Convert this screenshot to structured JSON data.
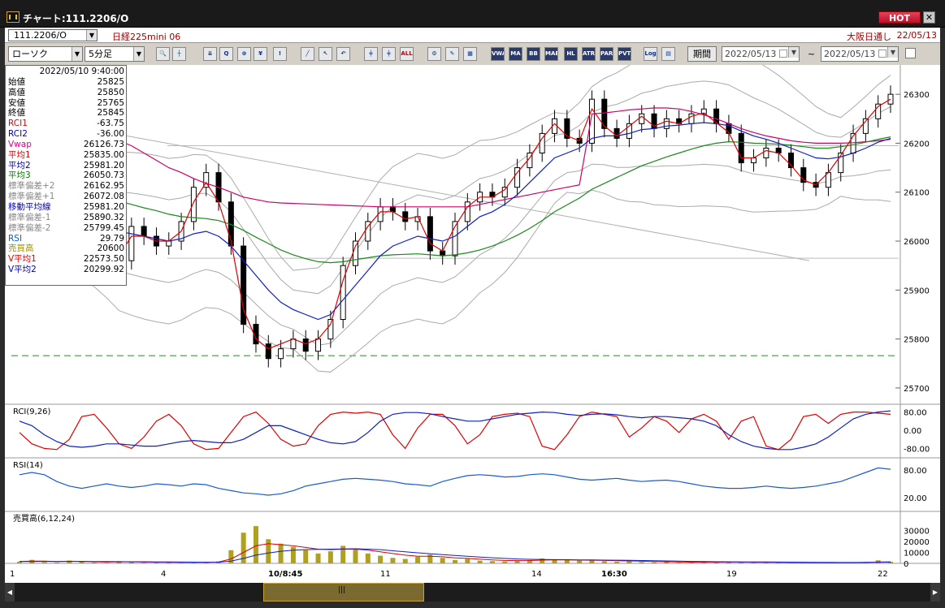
{
  "window": {
    "title": "チャート:111.2206/O",
    "hot_label": "HOT",
    "close_label": "✕"
  },
  "header": {
    "symbol_code": "111.2206/O",
    "symbol_name": "日経225mini 06",
    "session": "大阪日通し",
    "date": "22/05/13"
  },
  "toolbar": {
    "chart_type": "ローソク",
    "interval": "5分足",
    "period_label": "期間",
    "date_from": "2022/05/13",
    "date_to": "2022/05/13",
    "tilde": "~",
    "buttons": [
      {
        "name": "zoom-button",
        "glyph": "🔍"
      },
      {
        "name": "crosshair-button",
        "glyph": "┼"
      },
      {
        "name": "trend-button",
        "glyph": "⇊"
      },
      {
        "name": "magnify-button",
        "glyph": "Q"
      },
      {
        "name": "compare-button",
        "glyph": "⊕"
      },
      {
        "name": "price-button",
        "glyph": "¥"
      },
      {
        "name": "note-button",
        "glyph": "!"
      },
      {
        "name": "line-tool-button",
        "glyph": "╱"
      },
      {
        "name": "cursor-button",
        "glyph": "↖"
      },
      {
        "name": "undo-button",
        "glyph": "↶"
      },
      {
        "name": "candle-button",
        "glyph": "╪"
      },
      {
        "name": "candle2-button",
        "glyph": "╪"
      },
      {
        "name": "all-button",
        "glyph": "ALL"
      },
      {
        "name": "settings-button",
        "glyph": "⚙"
      },
      {
        "name": "color-button",
        "glyph": "✎"
      },
      {
        "name": "palette-button",
        "glyph": "▦"
      },
      {
        "name": "vwap-button",
        "glyph": "VWAP"
      },
      {
        "name": "ma-button",
        "glyph": "MA"
      },
      {
        "name": "bb-button",
        "glyph": "BB"
      },
      {
        "name": "mae-button",
        "glyph": "MAE"
      },
      {
        "name": "hl-button",
        "glyph": "HL"
      },
      {
        "name": "atr-button",
        "glyph": "ATR"
      },
      {
        "name": "para-button",
        "glyph": "PARA"
      },
      {
        "name": "pvt-button",
        "glyph": "PVT"
      },
      {
        "name": "log-button",
        "glyph": "Log"
      },
      {
        "name": "print-button",
        "glyph": "▤"
      }
    ]
  },
  "info_panel": {
    "timestamp": "2022/05/10 9:40:00",
    "rows": [
      {
        "label": "始値",
        "value": "25825",
        "color": "#000000"
      },
      {
        "label": "高値",
        "value": "25850",
        "color": "#000000"
      },
      {
        "label": "安値",
        "value": "25765",
        "color": "#000000"
      },
      {
        "label": "終値",
        "value": "25845",
        "color": "#000000"
      },
      {
        "label": "RCI1",
        "value": "-63.75",
        "color": "#e00000"
      },
      {
        "label": "RCI2",
        "value": "-36.00",
        "color": "#0000c0"
      },
      {
        "label": "Vwap",
        "value": "26126.73",
        "color": "#e0008a"
      },
      {
        "label": "平均1",
        "value": "25835.00",
        "color": "#e00000"
      },
      {
        "label": "平均2",
        "value": "25981.20",
        "color": "#0000c0"
      },
      {
        "label": "平均3",
        "value": "26050.73",
        "color": "#008000"
      },
      {
        "label": "標準偏差+2",
        "value": "26162.95",
        "color": "#888888"
      },
      {
        "label": "標準偏差+1",
        "value": "26072.08",
        "color": "#888888"
      },
      {
        "label": "移動平均線",
        "value": "25981.20",
        "color": "#0000c0"
      },
      {
        "label": "標準偏差-1",
        "value": "25890.32",
        "color": "#888888"
      },
      {
        "label": "標準偏差-2",
        "value": "25799.45",
        "color": "#888888"
      },
      {
        "label": "RSI",
        "value": "29.79",
        "color": "#0060e0"
      },
      {
        "label": "売買高",
        "value": "20600",
        "color": "#a09000"
      },
      {
        "label": "V平均1",
        "value": "22573.50",
        "color": "#e00000"
      },
      {
        "label": "V平均2",
        "value": "20299.92",
        "color": "#0000c0"
      }
    ]
  },
  "panels": {
    "rci_label": "RCI(9,26)",
    "rsi_label": "RSI(14)",
    "vol_label": "売買高(6,12,24)"
  },
  "chart_data": {
    "type": "candlestick",
    "price_axis": {
      "ticks": [
        26300,
        26200,
        26100,
        26000,
        25900,
        25800,
        25700
      ],
      "range": [
        25670,
        26350
      ]
    },
    "rci_axis": {
      "ticks": [
        "80.00",
        "0.00",
        "-80.00"
      ],
      "range": [
        -100,
        100
      ]
    },
    "rsi_axis": {
      "ticks": [
        "80.00",
        "20.00"
      ],
      "range": [
        0,
        100
      ]
    },
    "volume_axis": {
      "ticks": [
        "30000",
        "20000",
        "10000",
        "0"
      ],
      "range": [
        0,
        40000
      ]
    },
    "x_labels": [
      {
        "label": "1",
        "bold": false
      },
      {
        "label": "4",
        "bold": false
      },
      {
        "label": "10/8:45",
        "bold": true
      },
      {
        "label": "11",
        "bold": false
      },
      {
        "label": "14",
        "bold": false
      },
      {
        "label": "16:30",
        "bold": true
      },
      {
        "label": "19",
        "bold": false
      },
      {
        "label": "22",
        "bold": false
      }
    ],
    "reference_levels": [
      25766,
      25965,
      26195
    ],
    "close_path": [
      26040,
      26015,
      26060,
      26010,
      26090,
      26120,
      26060,
      26000,
      25960,
      26030,
      26010,
      25990,
      26000,
      26040,
      26110,
      26140,
      26080,
      25990,
      25830,
      25790,
      25760,
      25780,
      25800,
      25775,
      25800,
      25840,
      25950,
      26000,
      26040,
      26070,
      26060,
      26040,
      26050,
      25980,
      25970,
      26040,
      26080,
      26100,
      26090,
      26110,
      26150,
      26180,
      26220,
      26250,
      26210,
      26200,
      26290,
      26230,
      26210,
      26240,
      26260,
      26230,
      26250,
      26240,
      26260,
      26270,
      26240,
      26220,
      26160,
      26170,
      26190,
      26180,
      26150,
      26120,
      26110,
      26140,
      26180,
      26220,
      26250,
      26280,
      26300
    ],
    "ma1": [
      26020,
      26030,
      26040,
      26030,
      26060,
      26090,
      26060,
      26000,
      25970,
      26010,
      26010,
      26000,
      26000,
      26020,
      26080,
      26120,
      26080,
      26000,
      25860,
      25800,
      25780,
      25790,
      25800,
      25790,
      25800,
      25830,
      25920,
      25990,
      26030,
      26060,
      26060,
      26045,
      26050,
      25995,
      25980,
      26030,
      26070,
      26090,
      26090,
      26105,
      26140,
      26170,
      26210,
      26240,
      26215,
      26205,
      26270,
      26235,
      26215,
      26235,
      26255,
      26235,
      26245,
      26240,
      26255,
      26262,
      26242,
      26222,
      26170,
      26170,
      26185,
      26180,
      26155,
      26125,
      26115,
      26140,
      26175,
      26215,
      26245,
      26275,
      26290
    ],
    "ma2": [
      26100,
      26090,
      26075,
      26060,
      26055,
      26060,
      26055,
      26040,
      26020,
      26015,
      26010,
      26005,
      26000,
      26005,
      26015,
      26020,
      26010,
      25990,
      25960,
      25930,
      25900,
      25875,
      25860,
      25850,
      25840,
      25850,
      25880,
      25910,
      25940,
      25970,
      25990,
      26000,
      26010,
      26005,
      26000,
      26010,
      26030,
      26050,
      26060,
      26075,
      26095,
      26120,
      26145,
      26170,
      26180,
      26190,
      26210,
      26215,
      26215,
      26220,
      26228,
      26230,
      26235,
      26237,
      26240,
      26242,
      26240,
      26236,
      26225,
      26215,
      26208,
      26200,
      26190,
      26180,
      26170,
      26168,
      26172,
      26180,
      26190,
      26202,
      26210
    ],
    "ma3": [
      26150,
      26140,
      26130,
      26120,
      26112,
      26106,
      26100,
      26092,
      26082,
      26075,
      26068,
      26062,
      26055,
      26050,
      26048,
      26046,
      26042,
      26034,
      26022,
      26008,
      25995,
      25982,
      25972,
      25964,
      25958,
      25956,
      25958,
      25962,
      25966,
      25970,
      25972,
      25973,
      25974,
      25972,
      25970,
      25972,
      25976,
      25982,
      25990,
      26000,
      26012,
      26026,
      26042,
      26060,
      26074,
      26088,
      26106,
      26118,
      26130,
      26142,
      26154,
      26163,
      26172,
      26180,
      26188,
      26195,
      26200,
      26203,
      26202,
      26200,
      26199,
      26198,
      26196,
      26193,
      26190,
      26190,
      26193,
      26197,
      26202,
      26208,
      26213
    ],
    "vwap": [
      26230,
      26228,
      26225,
      26222,
      26220,
      26218,
      26215,
      26212,
      26205,
      26195,
      26180,
      26165,
      26150,
      26140,
      26128,
      26118,
      26110,
      26100,
      26090,
      26085,
      26080,
      26078,
      26077,
      26076,
      26075,
      26074,
      26073,
      26072,
      26071,
      26070,
      26070,
      26070,
      26070,
      26070,
      26070,
      26070,
      26070,
      26075,
      26080,
      26085,
      26090,
      26095,
      26100,
      26105,
      26110,
      26115,
      26260,
      26262,
      26265,
      26268,
      26270,
      26272,
      26272,
      26270,
      26265,
      26258,
      26250,
      26240,
      26230,
      26222,
      26215,
      26210,
      26205,
      26202,
      26200,
      26200,
      26200,
      26201,
      26203,
      26205,
      26208
    ],
    "rci1": [
      -10,
      -60,
      -80,
      -85,
      -40,
      60,
      70,
      10,
      -60,
      -80,
      -30,
      40,
      70,
      20,
      -60,
      -85,
      -80,
      -10,
      60,
      80,
      30,
      -40,
      -70,
      -60,
      20,
      70,
      80,
      75,
      80,
      70,
      -20,
      -80,
      10,
      70,
      70,
      20,
      -60,
      -20,
      60,
      70,
      75,
      60,
      -70,
      -85,
      -20,
      60,
      80,
      70,
      60,
      -30,
      10,
      60,
      40,
      -10,
      50,
      70,
      40,
      -40,
      40,
      60,
      -70,
      -85,
      -40,
      60,
      70,
      30,
      70,
      80,
      80,
      75,
      70
    ],
    "rci2": [
      40,
      20,
      -20,
      -50,
      -70,
      -75,
      -70,
      -60,
      -60,
      -65,
      -70,
      -70,
      -60,
      -50,
      -45,
      -50,
      -55,
      -55,
      -40,
      -10,
      20,
      20,
      0,
      -20,
      -40,
      -55,
      -60,
      -50,
      -10,
      40,
      70,
      78,
      78,
      72,
      60,
      50,
      40,
      40,
      50,
      60,
      70,
      75,
      80,
      78,
      70,
      65,
      70,
      72,
      68,
      60,
      55,
      60,
      60,
      55,
      50,
      40,
      20,
      -20,
      -50,
      -70,
      -80,
      -85,
      -85,
      -75,
      -60,
      -30,
      10,
      50,
      70,
      80,
      85
    ],
    "rsi": [
      70,
      75,
      70,
      55,
      45,
      40,
      45,
      50,
      45,
      42,
      45,
      50,
      48,
      45,
      50,
      48,
      40,
      35,
      30,
      28,
      25,
      28,
      35,
      45,
      50,
      55,
      60,
      62,
      60,
      58,
      55,
      50,
      48,
      45,
      55,
      62,
      68,
      70,
      68,
      65,
      66,
      70,
      72,
      70,
      65,
      60,
      58,
      60,
      62,
      58,
      55,
      57,
      58,
      55,
      50,
      45,
      42,
      40,
      40,
      42,
      45,
      42,
      40,
      42,
      45,
      50,
      55,
      65,
      75,
      85,
      82
    ],
    "volume": [
      1500,
      3200,
      1200,
      800,
      2500,
      1800,
      900,
      600,
      2000,
      1500,
      700,
      1100,
      800,
      600,
      1200,
      900,
      1800,
      12000,
      28000,
      34000,
      22000,
      18000,
      15000,
      12000,
      9000,
      11000,
      16000,
      13000,
      9000,
      7000,
      5000,
      4000,
      6000,
      8000,
      5000,
      3000,
      4000,
      2500,
      2000,
      1800,
      2200,
      3000,
      4500,
      3500,
      3000,
      2500,
      3000,
      2000,
      1500,
      1800,
      1200,
      1000,
      1500,
      900,
      800,
      1100,
      1200,
      1500,
      900,
      700,
      800,
      1000,
      600,
      500,
      700,
      800,
      600,
      900,
      1200,
      2800,
      1500
    ],
    "vol_ma1": [
      1800,
      2100,
      2000,
      1700,
      1900,
      1800,
      1500,
      1200,
      1400,
      1400,
      1200,
      1100,
      1000,
      900,
      950,
      1000,
      1200,
      4000,
      10000,
      16000,
      18000,
      17000,
      16000,
      14500,
      13000,
      12500,
      13000,
      13000,
      12000,
      10500,
      9000,
      7500,
      6500,
      6500,
      6000,
      5000,
      4500,
      3800,
      3200,
      2700,
      2500,
      2600,
      3000,
      3200,
      3200,
      3000,
      2900,
      2700,
      2400,
      2200,
      1900,
      1600,
      1500,
      1300,
      1100,
      1100,
      1100,
      1200,
      1150,
      1050,
      1000,
      950,
      850,
      750,
      700,
      700,
      680,
      700,
      800,
      1200,
      1400
    ],
    "vol_ma2": [
      1600,
      1700,
      1750,
      1700,
      1750,
      1750,
      1700,
      1600,
      1550,
      1500,
      1450,
      1350,
      1250,
      1150,
      1100,
      1050,
      1100,
      2000,
      4500,
      7500,
      9500,
      11000,
      12000,
      12500,
      12800,
      13000,
      13200,
      13300,
      13000,
      12500,
      11500,
      10500,
      9600,
      8800,
      8000,
      7200,
      6500,
      5800,
      5100,
      4500,
      4000,
      3700,
      3500,
      3400,
      3300,
      3200,
      3100,
      3000,
      2900,
      2800,
      2600,
      2400,
      2200,
      2000,
      1800,
      1600,
      1500,
      1400,
      1350,
      1300,
      1250,
      1200,
      1100,
      1000,
      950,
      900,
      850,
      850,
      900,
      1000,
      1100
    ]
  }
}
